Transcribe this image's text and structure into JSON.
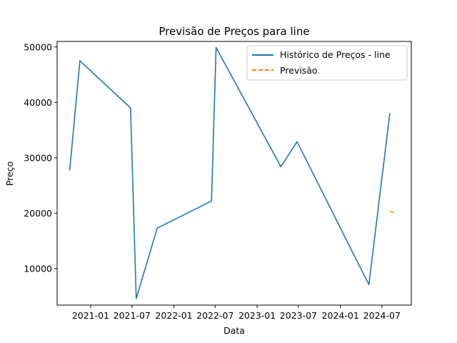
{
  "chart_data": {
    "type": "line",
    "title": "Previsão de Preços para line",
    "xlabel": "Data",
    "ylabel": "Preço",
    "xlim": [
      "2020-08-07",
      "2024-11-07"
    ],
    "ylim": [
      3400,
      51000
    ],
    "x_ticks": [
      "2021-01",
      "2021-07",
      "2022-01",
      "2022-07",
      "2023-01",
      "2023-07",
      "2024-01",
      "2024-07"
    ],
    "y_ticks": [
      10000,
      20000,
      30000,
      40000,
      50000
    ],
    "legend_position": "upper right",
    "grid": false,
    "series": [
      {
        "name": "Histórico de Preços - line",
        "color": "#1f77b4",
        "style": "solid",
        "points": [
          {
            "x": "2020-10-01",
            "y": 27700
          },
          {
            "x": "2020-11-15",
            "y": 47500
          },
          {
            "x": "2021-06-25",
            "y": 39000
          },
          {
            "x": "2021-07-20",
            "y": 4600
          },
          {
            "x": "2021-10-20",
            "y": 17300
          },
          {
            "x": "2022-06-15",
            "y": 22200
          },
          {
            "x": "2022-07-05",
            "y": 49900
          },
          {
            "x": "2023-04-15",
            "y": 28400
          },
          {
            "x": "2023-06-25",
            "y": 32900
          },
          {
            "x": "2024-05-05",
            "y": 7100
          },
          {
            "x": "2024-08-05",
            "y": 38100
          }
        ]
      },
      {
        "name": "Previsão",
        "color": "#ff7f0e",
        "style": "dashed",
        "points": [
          {
            "x": "2024-08-05",
            "y": 20300
          },
          {
            "x": "2024-08-25",
            "y": 20100
          }
        ]
      }
    ]
  }
}
